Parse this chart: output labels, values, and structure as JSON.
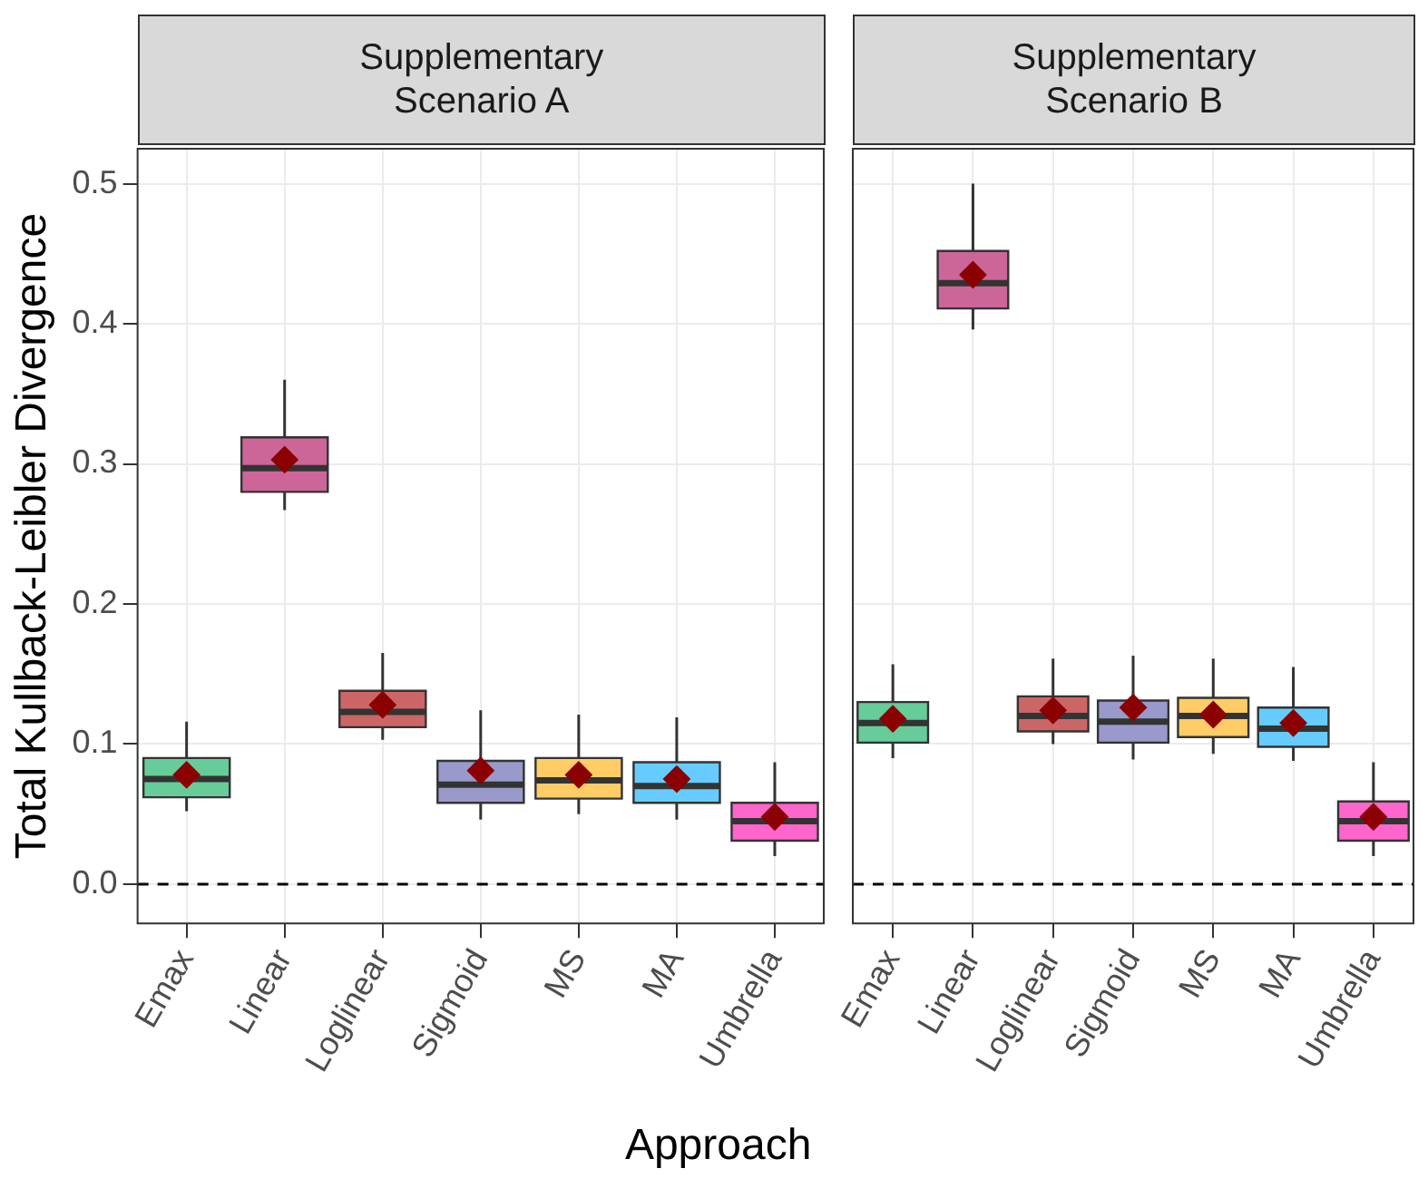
{
  "chart_data": [
    {
      "type": "box",
      "title": "Supplementary\nScenario A",
      "xlabel": "Approach",
      "ylabel": "Total Kullback-Leibler Divergence",
      "categories": [
        "Emax",
        "Linear",
        "Loglinear",
        "Sigmoid",
        "MS",
        "MA",
        "Umbrella"
      ],
      "colors": [
        "#66cc99",
        "#cc6699",
        "#cc6666",
        "#9999cc",
        "#ffcc66",
        "#66ccff",
        "#ff66cc"
      ],
      "boxes": [
        {
          "low": 0.052,
          "q1": 0.062,
          "median": 0.075,
          "q3": 0.09,
          "high": 0.116,
          "mean": 0.078
        },
        {
          "low": 0.267,
          "q1": 0.28,
          "median": 0.297,
          "q3": 0.319,
          "high": 0.36,
          "mean": 0.303
        },
        {
          "low": 0.103,
          "q1": 0.112,
          "median": 0.123,
          "q3": 0.138,
          "high": 0.165,
          "mean": 0.128
        },
        {
          "low": 0.046,
          "q1": 0.058,
          "median": 0.071,
          "q3": 0.088,
          "high": 0.124,
          "mean": 0.081
        },
        {
          "low": 0.05,
          "q1": 0.061,
          "median": 0.074,
          "q3": 0.09,
          "high": 0.121,
          "mean": 0.078
        },
        {
          "low": 0.046,
          "q1": 0.058,
          "median": 0.07,
          "q3": 0.087,
          "high": 0.119,
          "mean": 0.075
        },
        {
          "low": 0.02,
          "q1": 0.031,
          "median": 0.045,
          "q3": 0.058,
          "high": 0.087,
          "mean": 0.048
        }
      ],
      "ylim": [
        -0.028,
        0.525
      ],
      "yticks": [
        {
          "value": 0,
          "label": "0.0"
        },
        0.1,
        0.2,
        0.3,
        0.4,
        0.5
      ],
      "ref_lines": [
        {
          "axis": "y",
          "value": 0,
          "line_style": "dashed",
          "color": "#000000"
        }
      ],
      "grid": true,
      "marker": "diamond"
    },
    {
      "type": "box",
      "title": "Supplementary\nScenario B",
      "categories": [
        "Emax",
        "Linear",
        "Loglinear",
        "Sigmoid",
        "MS",
        "MA",
        "Umbrella"
      ],
      "colors": [
        "#66cc99",
        "#cc6699",
        "#cc6666",
        "#9999cc",
        "#ffcc66",
        "#66ccff",
        "#ff66cc"
      ],
      "boxes": [
        {
          "low": 0.09,
          "q1": 0.101,
          "median": 0.115,
          "q3": 0.13,
          "high": 0.157,
          "mean": 0.118
        },
        {
          "low": 0.396,
          "q1": 0.411,
          "median": 0.429,
          "q3": 0.452,
          "high": 0.5,
          "mean": 0.435
        },
        {
          "low": 0.1,
          "q1": 0.109,
          "median": 0.12,
          "q3": 0.134,
          "high": 0.161,
          "mean": 0.124
        },
        {
          "low": 0.089,
          "q1": 0.101,
          "median": 0.116,
          "q3": 0.131,
          "high": 0.163,
          "mean": 0.126
        },
        {
          "low": 0.093,
          "q1": 0.105,
          "median": 0.12,
          "q3": 0.133,
          "high": 0.161,
          "mean": 0.121
        },
        {
          "low": 0.088,
          "q1": 0.098,
          "median": 0.111,
          "q3": 0.126,
          "high": 0.155,
          "mean": 0.115
        },
        {
          "low": 0.02,
          "q1": 0.031,
          "median": 0.045,
          "q3": 0.059,
          "high": 0.087,
          "mean": 0.048
        }
      ],
      "ylim": [
        -0.028,
        0.525
      ],
      "yticks": [
        0,
        0.1,
        0.2,
        0.3,
        0.4,
        0.5
      ],
      "ref_lines": [
        {
          "axis": "y",
          "value": 0,
          "line_style": "dashed",
          "color": "#000000"
        }
      ],
      "grid": true,
      "marker": "diamond",
      "tick_labels": "x"
    }
  ]
}
